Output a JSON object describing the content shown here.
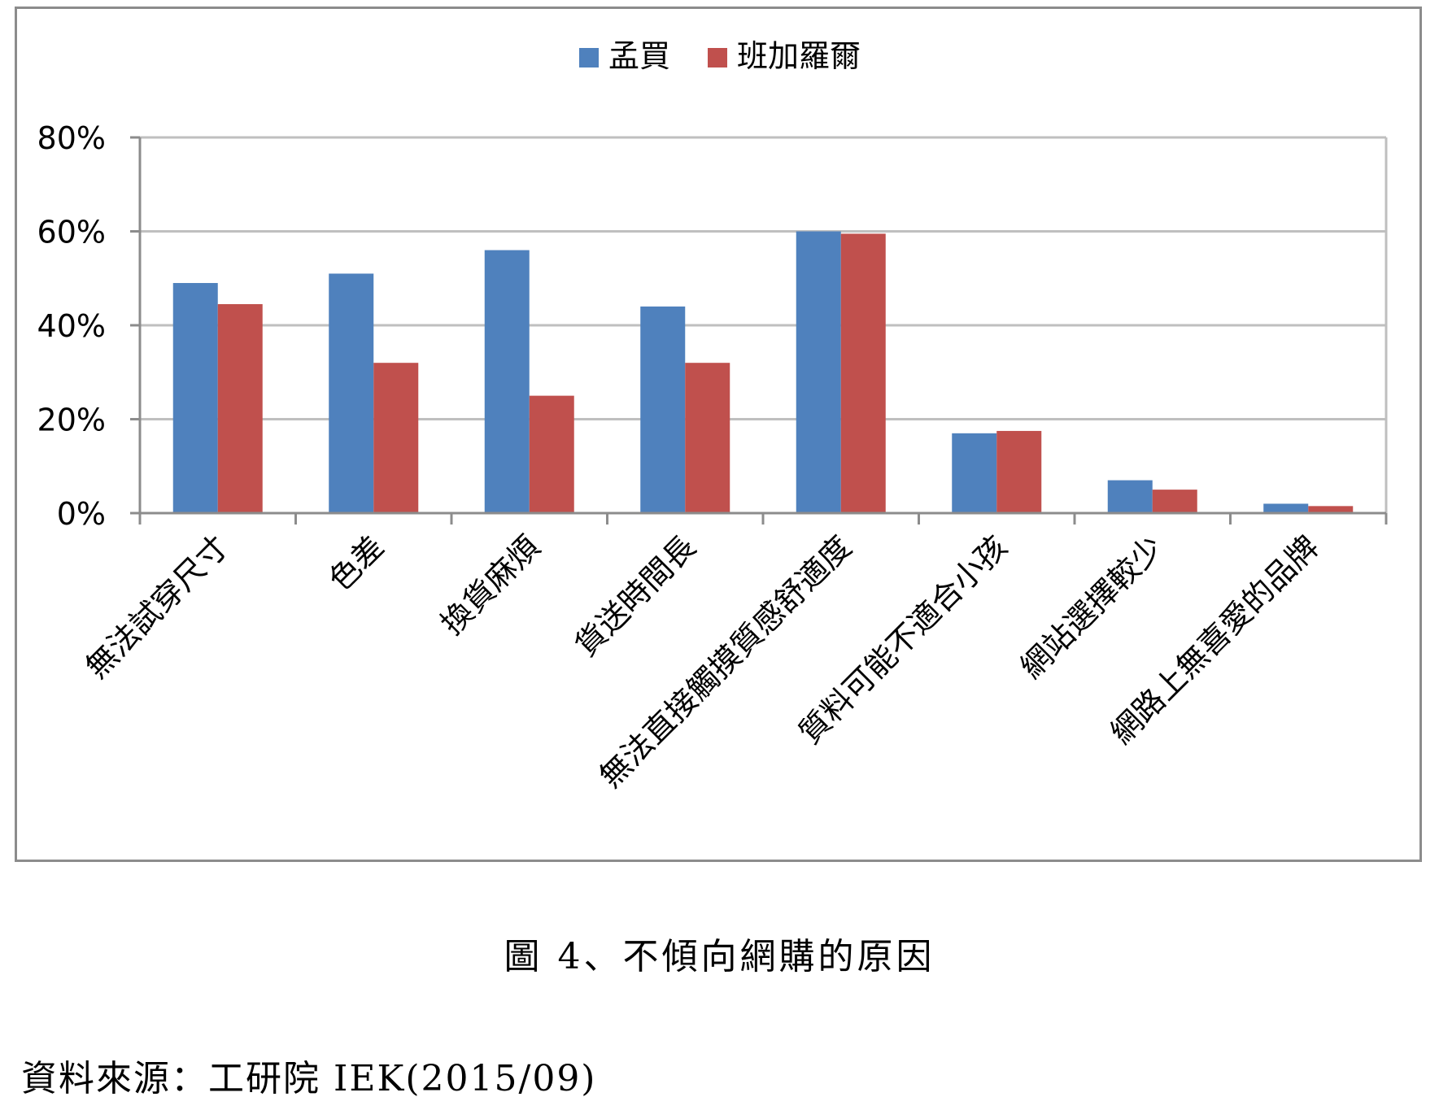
{
  "chart_data": {
    "type": "bar",
    "categories": [
      "無法試穿尺寸",
      "色差",
      "換貨麻煩",
      "貨送時間長",
      "無法直接觸摸質感舒適度",
      "質料可能不適合小孩",
      "網站選擇較少",
      "網路上無喜愛的品牌"
    ],
    "series": [
      {
        "name": "孟買",
        "color": "#4f81bd",
        "values": [
          49,
          51,
          56,
          44,
          60,
          17,
          7,
          2
        ]
      },
      {
        "name": "班加羅爾",
        "color": "#c0504d",
        "values": [
          44.5,
          32,
          25,
          32,
          59.5,
          17.5,
          5,
          1.5
        ]
      }
    ],
    "y_ticks": [
      "0%",
      "20%",
      "40%",
      "60%",
      "80%"
    ],
    "ylim": [
      0,
      80
    ],
    "grid": true,
    "legend_position": "top-center"
  },
  "caption": "圖 4、不傾向網購的原因",
  "source": "資料來源：工研院 IEK(2015/09)"
}
